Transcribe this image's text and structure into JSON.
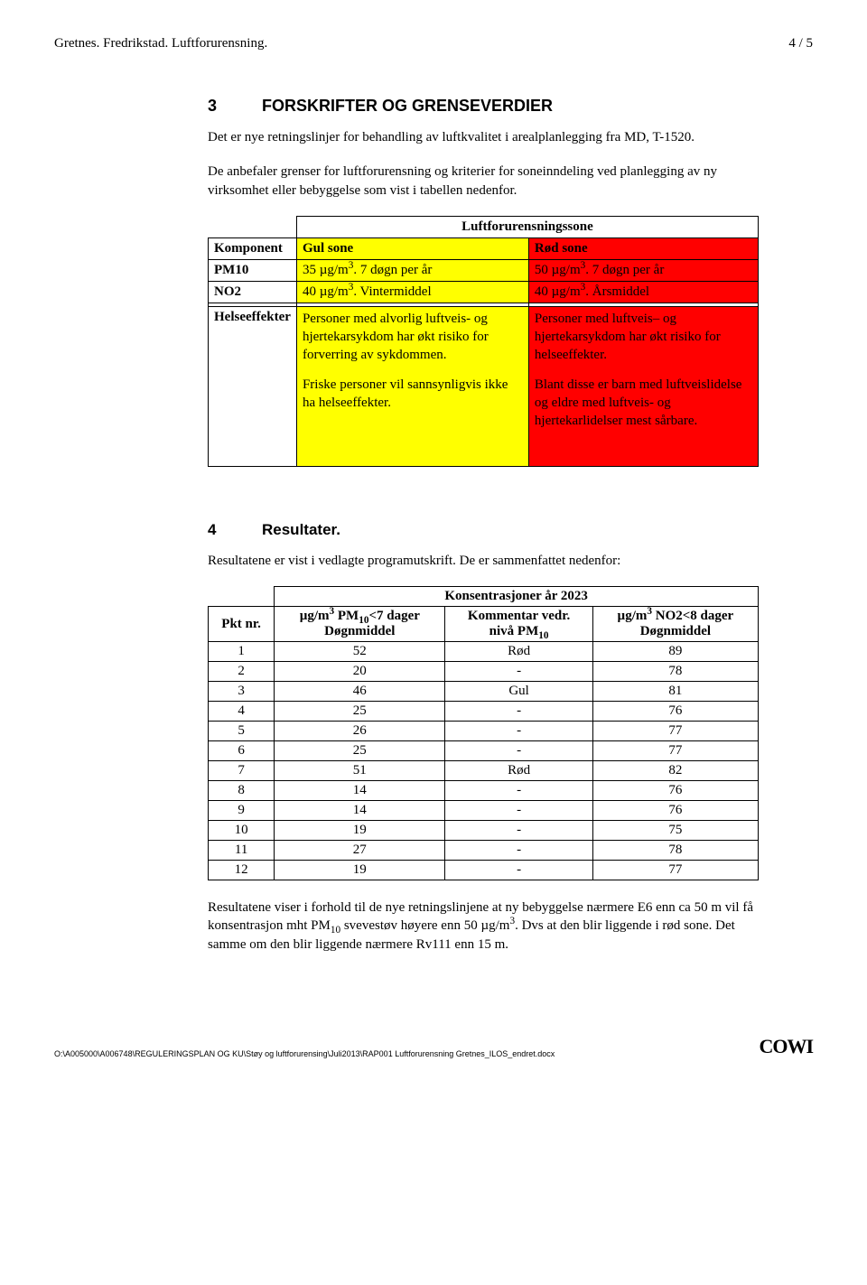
{
  "header": {
    "left": "Gretnes. Fredrikstad. Luftforurensning.",
    "right": "4 / 5"
  },
  "section3": {
    "num": "3",
    "title": "FORSKRIFTER OG GRENSEVERDIER",
    "para1": "Det er nye retningslinjer for behandling av luftkvalitet i arealplanlegging fra MD, T-1520.",
    "para2": "De anbefaler grenser for luftforurensning og kriterier for soneinndeling ved planlegging av ny virksomhet eller bebyggelse som vist i tabellen nedenfor."
  },
  "table1": {
    "zone_title": "Luftforurensningssone",
    "h_comp": "Komponent",
    "h_gul": "Gul sone",
    "h_rod": "Rød sone",
    "r_pm10": {
      "label": "PM10",
      "gul": "35 µg/m³. 7 døgn per år",
      "rod": "50 µg/m³. 7 døgn per år"
    },
    "r_no2": {
      "label": "NO2",
      "gul": "40 µg/m³. Vintermiddel",
      "rod": "40 µg/m³. Årsmiddel"
    },
    "r_eff": {
      "label": "Helseeffekter",
      "gul1": "Personer med alvorlig luftveis- og hjertekarsykdom har økt risiko for forverring av sykdommen.",
      "gul2": "Friske personer vil sannsynligvis ikke ha helseeffekter.",
      "rod1": "Personer med luftveis– og hjertekarsykdom har økt risiko for helseeffekter.",
      "rod2": "Blant disse er barn med luftveislidelse og eldre med luftveis- og hjertekarlidelser mest sårbare."
    }
  },
  "section4": {
    "num": "4",
    "title": "Resultater.",
    "intro": "Resultatene er vist i vedlagte programutskrift. De er sammenfattet nedenfor:",
    "closing": "Resultatene viser i forhold til de nye retningslinjene at ny bebyggelse nærmere E6 enn ca 50 m vil få konsentrasjon mht PM₁₀ svevestøv høyere enn 50 µg/m³. Dvs at den blir liggende i rød sone. Det samme om den blir liggende nærmere Rv111 enn 15 m."
  },
  "table2": {
    "title": "Konsentrasjoner år 2023",
    "h_pkt": "Pkt nr.",
    "h_pm": "µg/m³ PM₁₀<7 dager Døgnmiddel",
    "h_kom": "Kommentar vedr. nivå PM₁₀",
    "h_no2": "µg/m³ NO2<8 dager Døgnmiddel",
    "rows": [
      {
        "n": "1",
        "pm": "52",
        "k": "Rød",
        "no2": "89"
      },
      {
        "n": "2",
        "pm": "20",
        "k": "-",
        "no2": "78"
      },
      {
        "n": "3",
        "pm": "46",
        "k": "Gul",
        "no2": "81"
      },
      {
        "n": "4",
        "pm": "25",
        "k": "-",
        "no2": "76"
      },
      {
        "n": "5",
        "pm": "26",
        "k": "-",
        "no2": "77"
      },
      {
        "n": "6",
        "pm": "25",
        "k": "-",
        "no2": "77"
      },
      {
        "n": "7",
        "pm": "51",
        "k": "Rød",
        "no2": "82"
      },
      {
        "n": "8",
        "pm": "14",
        "k": "-",
        "no2": "76"
      },
      {
        "n": "9",
        "pm": "14",
        "k": "-",
        "no2": "76"
      },
      {
        "n": "10",
        "pm": "19",
        "k": "-",
        "no2": "75"
      },
      {
        "n": "11",
        "pm": "27",
        "k": "-",
        "no2": "78"
      },
      {
        "n": "12",
        "pm": "19",
        "k": "-",
        "no2": "77"
      }
    ]
  },
  "footer": {
    "path": "O:\\A005000\\A006748\\REGULERINGSPLAN OG KU\\Støy og luftforurensing\\Juli2013\\RAP001 Luftforurensning Gretnes_ILOS_endret.docx",
    "logo": "COWI"
  }
}
